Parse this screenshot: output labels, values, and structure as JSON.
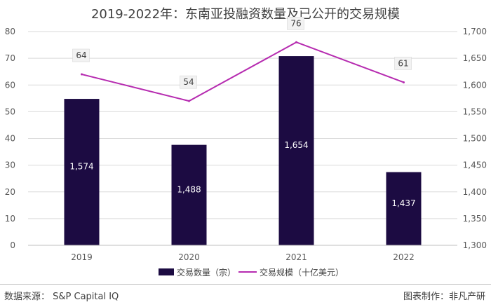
{
  "chart_data": {
    "type": "bar",
    "title": "2019-2022年：东南亚投融资数量及已公开的交易规模",
    "categories": [
      "2019",
      "2020",
      "2021",
      "2022"
    ],
    "series": [
      {
        "name": "交易数量（宗）",
        "type": "bar",
        "axis": "right",
        "values": [
          1574,
          1488,
          1654,
          1437
        ],
        "labels": [
          "1,574",
          "1,488",
          "1,654",
          "1,437"
        ]
      },
      {
        "name": "交易规模（十亿美元）",
        "type": "line",
        "axis": "left",
        "values": [
          64,
          54,
          76,
          61
        ],
        "labels": [
          "64",
          "54",
          "76",
          "61"
        ]
      }
    ],
    "y_left": {
      "min": 0,
      "max": 80,
      "ticks": [
        "0",
        "10",
        "20",
        "30",
        "40",
        "50",
        "60",
        "70",
        "80"
      ]
    },
    "y_right": {
      "min": 1300,
      "max": 1700,
      "ticks": [
        "1,300",
        "1,350",
        "1,400",
        "1,450",
        "1,500",
        "1,550",
        "1,600",
        "1,650",
        "1,700"
      ]
    },
    "grid": true,
    "legend_position": "bottom"
  },
  "colors": {
    "bar": "#1c0b42",
    "line": "#b62bb0"
  },
  "footer": {
    "source": "数据来源： S&P Capital IQ",
    "credit": "图表制作：非凡产研"
  }
}
